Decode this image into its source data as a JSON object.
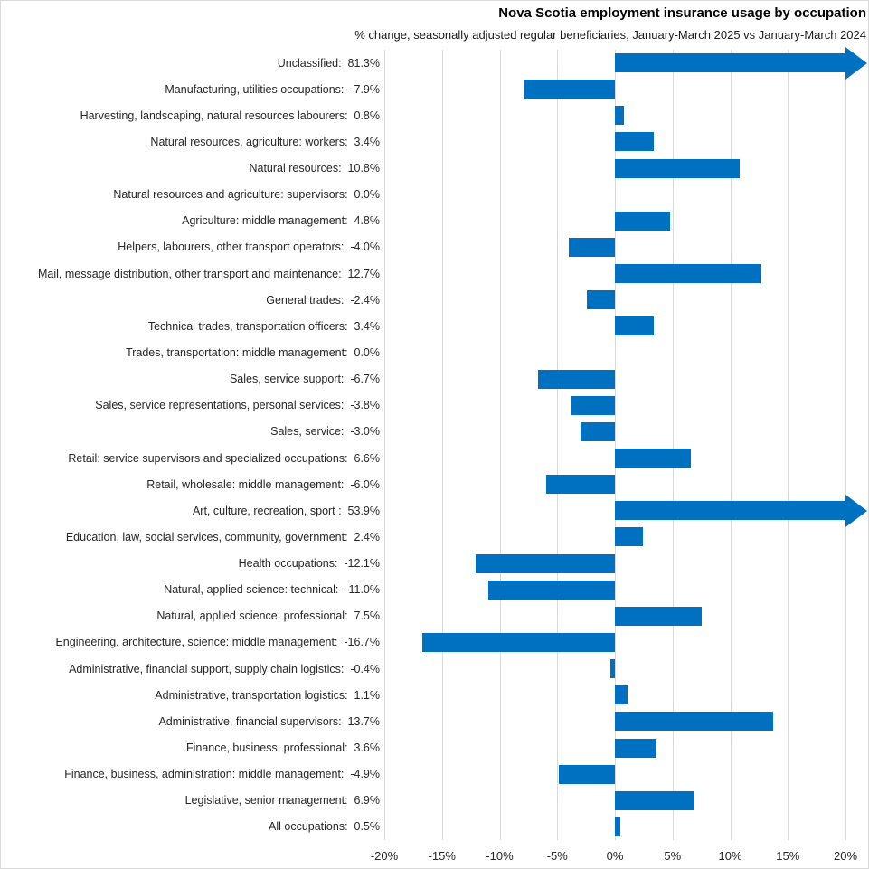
{
  "chart_data": {
    "type": "bar",
    "orientation": "horizontal",
    "title": "Nova Scotia employment insurance usage by occupation",
    "subtitle": "% change, seasonally adjusted regular beneficiaries, January-March 2025 vs January-March 2024",
    "bar_color": "#0070C0",
    "gridline_color": "#D9D9D9",
    "value_suffix": "%",
    "label_value_separator": ":  ",
    "x_axis": {
      "min": -20,
      "max": 20,
      "step": 5,
      "tick_labels": [
        "-20%",
        "-15%",
        "-10%",
        "-5%",
        "0%",
        "5%",
        "10%",
        "15%",
        "20%"
      ]
    },
    "categories": [
      "Unclassified",
      "Manufacturing, utilities occupations",
      "Harvesting, landscaping, natural resources labourers",
      "Natural resources, agriculture: workers",
      "Natural resources",
      "Natural resources and agriculture: supervisors",
      "Agriculture: middle management",
      "Helpers, labourers, other transport operators",
      "Mail, message distribution, other transport and maintenance",
      "General trades",
      "Technical trades, transportation officers",
      "Trades, transportation: middle management",
      "Sales, service support",
      "Sales, service representations, personal services",
      "Sales, service",
      "Retail: service supervisors and specialized occupations",
      "Retail, wholesale: middle management",
      "Art, culture, recreation, sport ",
      "Education, law, social services, community, government",
      "Health occupations",
      "Natural, applied science: technical",
      "Natural, applied science: professional",
      "Engineering, architecture, science: middle management",
      "Administrative, financial support, supply chain logistics",
      "Administrative, transportation logistics",
      "Administrative, financial supervisors",
      "Finance, business: professional",
      "Finance, business, administration: middle management",
      "Legislative, senior management",
      "All occupations"
    ],
    "values": [
      81.3,
      -7.9,
      0.8,
      3.4,
      10.8,
      0.0,
      4.8,
      -4.0,
      12.7,
      -2.4,
      3.4,
      0.0,
      -6.7,
      -3.8,
      -3.0,
      6.6,
      -6.0,
      53.9,
      2.4,
      -12.1,
      -11.0,
      7.5,
      -16.7,
      -0.4,
      1.1,
      13.7,
      3.6,
      -4.9,
      6.9,
      0.5
    ]
  }
}
